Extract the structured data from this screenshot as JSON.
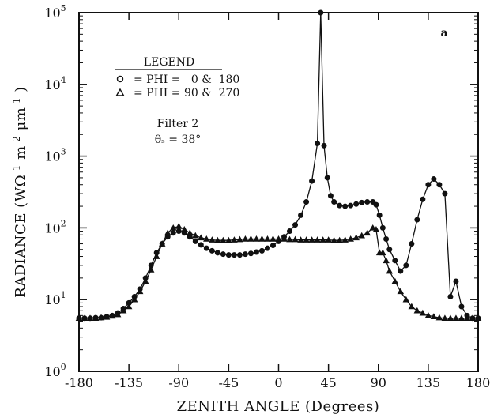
{
  "chart_data": {
    "type": "line",
    "panel_label": "a",
    "xlabel": "ZENITH ANGLE (Degrees)",
    "ylabel_parts": [
      "RADIANCE (WΩ",
      "m",
      "μm",
      ")"
    ],
    "ylabel_exponents": [
      "-1",
      "-2",
      "-1"
    ],
    "xlim": [
      -180,
      180
    ],
    "ylim": [
      1,
      100000
    ],
    "yscale": "log",
    "xticks": [
      -180,
      -135,
      -90,
      -45,
      0,
      45,
      90,
      135,
      180
    ],
    "xtick_labels": [
      "-180",
      "-135",
      "-90",
      "-45",
      "0",
      "45",
      "90",
      "135",
      "180"
    ],
    "ytick_base": "10",
    "ytick_exponents": [
      "0",
      "1",
      "2",
      "3",
      "4",
      "5"
    ],
    "legend": {
      "title": "LEGEND",
      "entries": [
        {
          "marker": "circle",
          "text": "= PHI =   0 &  180"
        },
        {
          "marker": "triangle",
          "text": "= PHI = 90 &  270"
        }
      ]
    },
    "annotations": [
      "Filter 2",
      "θₛ = 38°"
    ],
    "series": [
      {
        "marker": "circle",
        "x": [
          -180,
          -175,
          -170,
          -165,
          -160,
          -155,
          -150,
          -145,
          -140,
          -135,
          -130,
          -125,
          -120,
          -115,
          -110,
          -105,
          -100,
          -95,
          -90,
          -85,
          -80,
          -75,
          -70,
          -65,
          -60,
          -55,
          -50,
          -45,
          -40,
          -35,
          -30,
          -25,
          -20,
          -15,
          -10,
          -5,
          0,
          5,
          10,
          15,
          20,
          25,
          30,
          35,
          38,
          41,
          44,
          47,
          50,
          55,
          60,
          65,
          70,
          75,
          80,
          85,
          88,
          91,
          94,
          97,
          100,
          105,
          110,
          115,
          120,
          125,
          130,
          135,
          140,
          145,
          150,
          155,
          160,
          165,
          170,
          175,
          180
        ],
        "y": [
          5.5,
          5.5,
          5.5,
          5.6,
          5.6,
          5.8,
          6.0,
          6.5,
          7.5,
          9,
          11,
          14,
          20,
          30,
          45,
          60,
          75,
          85,
          90,
          85,
          75,
          65,
          58,
          52,
          48,
          45,
          43,
          42,
          42,
          42,
          43,
          44,
          46,
          48,
          52,
          57,
          65,
          75,
          90,
          110,
          150,
          230,
          450,
          1500,
          100000,
          1400,
          500,
          280,
          230,
          205,
          200,
          205,
          215,
          225,
          230,
          230,
          210,
          150,
          100,
          70,
          50,
          35,
          25,
          30,
          60,
          130,
          250,
          400,
          480,
          400,
          300,
          11,
          18,
          8,
          6,
          5.5,
          5.5
        ]
      },
      {
        "marker": "triangle",
        "x": [
          -180,
          -175,
          -170,
          -165,
          -160,
          -155,
          -150,
          -145,
          -140,
          -135,
          -130,
          -125,
          -120,
          -115,
          -110,
          -105,
          -100,
          -95,
          -90,
          -85,
          -80,
          -75,
          -70,
          -65,
          -60,
          -55,
          -50,
          -45,
          -40,
          -35,
          -30,
          -25,
          -20,
          -15,
          -10,
          -5,
          0,
          5,
          10,
          15,
          20,
          25,
          30,
          35,
          40,
          45,
          50,
          55,
          60,
          65,
          70,
          75,
          80,
          85,
          88,
          91,
          94,
          97,
          100,
          105,
          110,
          115,
          120,
          125,
          130,
          135,
          140,
          145,
          150,
          155,
          160,
          165,
          170,
          175,
          180
        ],
        "y": [
          5.5,
          5.5,
          5.5,
          5.5,
          5.6,
          5.7,
          5.9,
          6.2,
          7,
          8,
          10,
          13,
          18,
          26,
          40,
          60,
          85,
          100,
          105,
          95,
          85,
          78,
          73,
          70,
          68,
          67,
          67,
          67,
          68,
          69,
          70,
          70,
          70,
          70,
          70,
          70,
          70,
          70,
          69,
          69,
          68,
          68,
          68,
          68,
          68,
          68,
          67,
          67,
          68,
          70,
          73,
          78,
          85,
          100,
          95,
          45,
          45,
          35,
          25,
          18,
          13,
          10,
          8,
          7,
          6.5,
          6,
          5.8,
          5.6,
          5.5,
          5.5,
          5.5,
          5.5,
          5.5,
          5.5,
          5.5
        ]
      }
    ]
  }
}
